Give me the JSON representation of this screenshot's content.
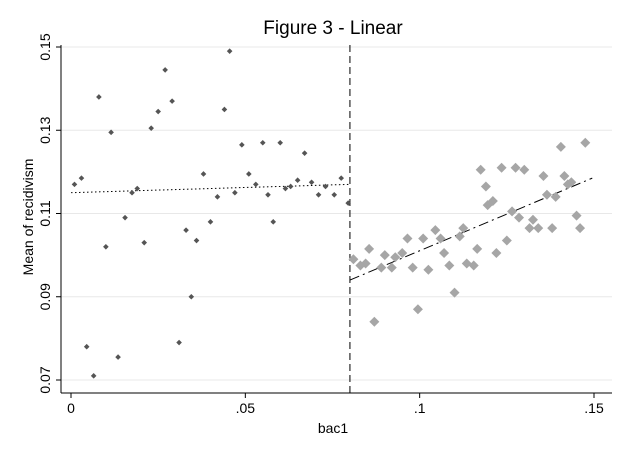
{
  "chart_data": {
    "type": "scatter",
    "title": "Figure 3 - Linear",
    "xlabel": "bac1",
    "ylabel": "Mean of recidivism",
    "xlim": [
      0,
      0.15
    ],
    "ylim": [
      0.07,
      0.15
    ],
    "x_ticks": [
      0,
      0.05,
      0.1,
      0.15
    ],
    "x_tick_labels": [
      "0",
      ".05",
      ".1",
      ".15"
    ],
    "y_ticks": [
      0.07,
      0.09,
      0.11,
      0.13,
      0.15
    ],
    "y_tick_labels": [
      "0.07",
      "0.09",
      "0.11",
      "0.13",
      "0.15"
    ],
    "grid": true,
    "cutoff_x": 0.08,
    "series": [
      {
        "marker": "diamond-small",
        "color": "#555555",
        "points": [
          [
            0.001,
            0.117
          ],
          [
            0.003,
            0.1185
          ],
          [
            0.0045,
            0.078
          ],
          [
            0.0065,
            0.071
          ],
          [
            0.008,
            0.138
          ],
          [
            0.01,
            0.102
          ],
          [
            0.0115,
            0.1295
          ],
          [
            0.0135,
            0.0755
          ],
          [
            0.0155,
            0.109
          ],
          [
            0.0175,
            0.115
          ],
          [
            0.019,
            0.116
          ],
          [
            0.021,
            0.103
          ],
          [
            0.023,
            0.1305
          ],
          [
            0.025,
            0.1345
          ],
          [
            0.027,
            0.1445
          ],
          [
            0.029,
            0.137
          ],
          [
            0.031,
            0.079
          ],
          [
            0.033,
            0.106
          ],
          [
            0.0345,
            0.09
          ],
          [
            0.036,
            0.1035
          ],
          [
            0.038,
            0.1195
          ],
          [
            0.04,
            0.108
          ],
          [
            0.042,
            0.114
          ],
          [
            0.044,
            0.135
          ],
          [
            0.0455,
            0.149
          ],
          [
            0.047,
            0.115
          ],
          [
            0.049,
            0.1265
          ],
          [
            0.051,
            0.1195
          ],
          [
            0.053,
            0.117
          ],
          [
            0.055,
            0.127
          ],
          [
            0.0565,
            0.1145
          ],
          [
            0.058,
            0.108
          ],
          [
            0.06,
            0.127
          ],
          [
            0.0615,
            0.116
          ],
          [
            0.063,
            0.1165
          ],
          [
            0.065,
            0.118
          ],
          [
            0.067,
            0.1245
          ],
          [
            0.069,
            0.1175
          ],
          [
            0.071,
            0.1145
          ],
          [
            0.073,
            0.1165
          ],
          [
            0.0755,
            0.1145
          ],
          [
            0.0775,
            0.1185
          ],
          [
            0.0795,
            0.1125
          ]
        ]
      },
      {
        "marker": "diamond-large",
        "color": "#a6a6a6",
        "points": [
          [
            0.081,
            0.099
          ],
          [
            0.083,
            0.0975
          ],
          [
            0.0845,
            0.098
          ],
          [
            0.0855,
            0.1015
          ],
          [
            0.087,
            0.084
          ],
          [
            0.089,
            0.097
          ],
          [
            0.09,
            0.1
          ],
          [
            0.092,
            0.097
          ],
          [
            0.093,
            0.0995
          ],
          [
            0.095,
            0.1005
          ],
          [
            0.0965,
            0.104
          ],
          [
            0.098,
            0.097
          ],
          [
            0.0995,
            0.087
          ],
          [
            0.101,
            0.104
          ],
          [
            0.1025,
            0.0965
          ],
          [
            0.1045,
            0.106
          ],
          [
            0.106,
            0.104
          ],
          [
            0.107,
            0.1005
          ],
          [
            0.1085,
            0.0975
          ],
          [
            0.11,
            0.091
          ],
          [
            0.1115,
            0.1045
          ],
          [
            0.1125,
            0.1065
          ],
          [
            0.1135,
            0.098
          ],
          [
            0.1155,
            0.0975
          ],
          [
            0.1165,
            0.1015
          ],
          [
            0.1175,
            0.1205
          ],
          [
            0.119,
            0.1165
          ],
          [
            0.1195,
            0.112
          ],
          [
            0.121,
            0.113
          ],
          [
            0.122,
            0.1005
          ],
          [
            0.1235,
            0.121
          ],
          [
            0.125,
            0.1035
          ],
          [
            0.1265,
            0.1105
          ],
          [
            0.1275,
            0.121
          ],
          [
            0.1285,
            0.109
          ],
          [
            0.13,
            0.1205
          ],
          [
            0.1315,
            0.1065
          ],
          [
            0.1325,
            0.1085
          ],
          [
            0.134,
            0.1065
          ],
          [
            0.1355,
            0.119
          ],
          [
            0.1365,
            0.1145
          ],
          [
            0.138,
            0.1065
          ],
          [
            0.139,
            0.114
          ],
          [
            0.1405,
            0.126
          ],
          [
            0.1415,
            0.119
          ],
          [
            0.1425,
            0.117
          ],
          [
            0.1435,
            0.1175
          ],
          [
            0.145,
            0.1095
          ],
          [
            0.146,
            0.1065
          ],
          [
            0.1475,
            0.127
          ]
        ]
      }
    ],
    "fit_lines": [
      {
        "style": "dotted",
        "x": [
          0,
          0.08
        ],
        "y": [
          0.115,
          0.117
        ]
      },
      {
        "style": "dashdot",
        "x": [
          0.08,
          0.1495
        ],
        "y": [
          0.094,
          0.1185
        ]
      }
    ]
  }
}
